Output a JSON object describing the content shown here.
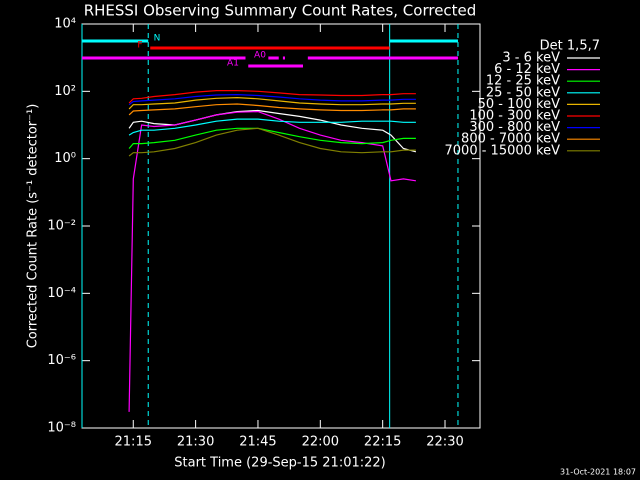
{
  "chart_data": {
    "type": "line",
    "title": "RHESSI Observing Summary Count Rates, Corrected",
    "xlabel": "Start Time (29-Sep-15 21:01:22)",
    "ylabel": "Corrected Count Rate (s⁻¹ detector⁻¹)",
    "footer": "31-Oct-2021 18:07",
    "legend_title": "Det 1,5,7",
    "log_y": true,
    "xlim": [
      "21:02:40",
      "22:38:25"
    ],
    "xticks": [
      "21:15",
      "21:30",
      "21:45",
      "22:00",
      "22:15",
      "22:30"
    ],
    "ylim": [
      1e-08,
      10000
    ],
    "yticks": [
      {
        "value": 1e-08,
        "label": "10⁻⁸"
      },
      {
        "value": 1e-06,
        "label": "10⁻⁶"
      },
      {
        "value": 0.0001,
        "label": "10⁻⁴"
      },
      {
        "value": 0.01,
        "label": "10⁻²"
      },
      {
        "value": 1,
        "label": "10⁰"
      },
      {
        "value": 100,
        "label": "10²"
      },
      {
        "value": 10000,
        "label": "10⁴"
      }
    ],
    "x": [
      "21:14",
      "21:15",
      "21:17",
      "21:20",
      "21:25",
      "21:30",
      "21:35",
      "21:40",
      "21:45",
      "21:50",
      "21:55",
      "22:00",
      "22:05",
      "22:10",
      "22:15",
      "22:17",
      "22:20",
      "22:23"
    ],
    "series": [
      {
        "name": "3 - 6 keV",
        "color": "#ffffff",
        "values": [
          8,
          12,
          13,
          11,
          10,
          14,
          20,
          25,
          27,
          22,
          18,
          14,
          10,
          8,
          7,
          5,
          2,
          1.6
        ]
      },
      {
        "name": "6 - 12 keV",
        "color": "#ff00ff",
        "values": [
          3e-08,
          0.25,
          10,
          9,
          10,
          14,
          20,
          24,
          25,
          15,
          8,
          5,
          3.5,
          3,
          2.4,
          0.22,
          0.25,
          0.22
        ]
      },
      {
        "name": "12 - 25 keV",
        "color": "#00ff00",
        "values": [
          2,
          2.8,
          2.8,
          3,
          3.5,
          5,
          7,
          8,
          8,
          6,
          4.5,
          3.5,
          3,
          2.8,
          3,
          3.5,
          4,
          4
        ]
      },
      {
        "name": "25 - 50 keV",
        "color": "#00ffff",
        "values": [
          5,
          6,
          7,
          7,
          8,
          10,
          13,
          15,
          15,
          13,
          12,
          12,
          12,
          13,
          13,
          13,
          12,
          12
        ]
      },
      {
        "name": "50 - 100 keV",
        "color": "#e8b400",
        "values": [
          30,
          40,
          40,
          42,
          45,
          55,
          62,
          65,
          60,
          52,
          45,
          42,
          40,
          40,
          42,
          42,
          44,
          44
        ]
      },
      {
        "name": "100 - 300 keV",
        "color": "#ff0000",
        "values": [
          45,
          60,
          62,
          70,
          80,
          95,
          105,
          105,
          100,
          90,
          80,
          78,
          75,
          75,
          80,
          80,
          85,
          85
        ]
      },
      {
        "name": "300 - 800 keV",
        "color": "#0000ff",
        "values": [
          40,
          50,
          52,
          55,
          60,
          70,
          78,
          80,
          75,
          68,
          60,
          55,
          52,
          52,
          55,
          55,
          58,
          58
        ]
      },
      {
        "name": "800 - 7000 keV",
        "color": "#ff8c00",
        "values": [
          20,
          26,
          27,
          28,
          30,
          35,
          40,
          42,
          38,
          33,
          30,
          28,
          27,
          27,
          28,
          28,
          30,
          30
        ]
      },
      {
        "name": "7000 - 15000 keV",
        "color": "#808000",
        "values": [
          1.2,
          1.5,
          1.5,
          1.6,
          2,
          3,
          5,
          7,
          8,
          5,
          3,
          2,
          1.6,
          1.5,
          1.6,
          1.6,
          1.8,
          1.8
        ]
      }
    ],
    "flags": [
      {
        "label": "N",
        "color": "#00ffff",
        "intervals": [
          [
            "21:02:40",
            "21:18:36"
          ],
          [
            "22:16:41",
            "22:33:07"
          ]
        ]
      },
      {
        "label": "F",
        "color": "#ff0000",
        "intervals": [
          [
            "21:19:05",
            "22:16:41"
          ]
        ]
      },
      {
        "label": "A0",
        "color": "#ff00ff",
        "intervals": [
          [
            "21:02:40",
            "21:42:00"
          ],
          [
            "21:47:30",
            "21:50:00"
          ],
          [
            "21:51:00",
            "21:51:30"
          ],
          [
            "21:57:00",
            "22:33:07"
          ]
        ]
      },
      {
        "label": "A1",
        "color": "#ff00ff",
        "intervals": [
          [
            "21:42:40",
            "21:55:50"
          ]
        ]
      }
    ]
  }
}
